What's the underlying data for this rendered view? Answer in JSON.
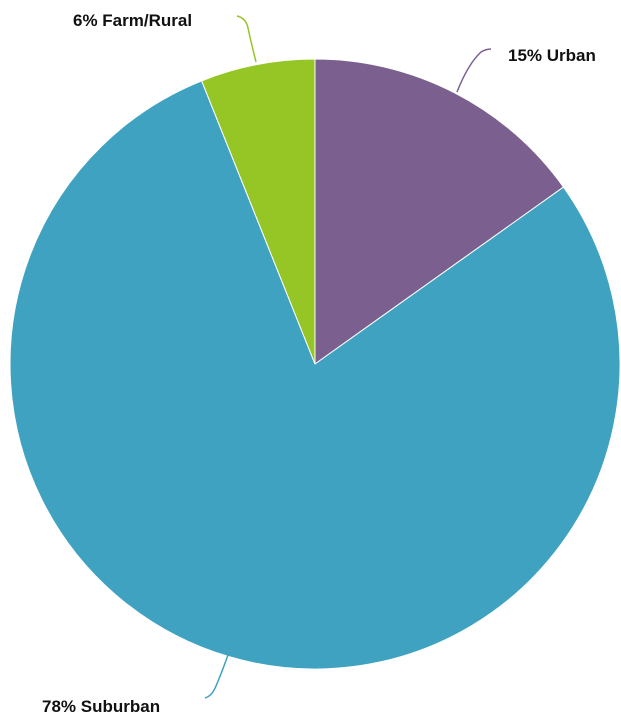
{
  "chart_data": {
    "type": "pie",
    "title": "",
    "slices": [
      {
        "label": "Urban",
        "value": 15,
        "text": "15% Urban",
        "color": "#7b5f8f"
      },
      {
        "label": "Suburban",
        "value": 78,
        "text": "78% Suburban",
        "color": "#3fa2c1"
      },
      {
        "label": "Farm/Rural",
        "value": 6,
        "text": "6% Farm/Rural",
        "color": "#95c626"
      }
    ],
    "start": "top",
    "direction": "clockwise",
    "legend": "none",
    "labels": "outside-with-leader-lines"
  }
}
